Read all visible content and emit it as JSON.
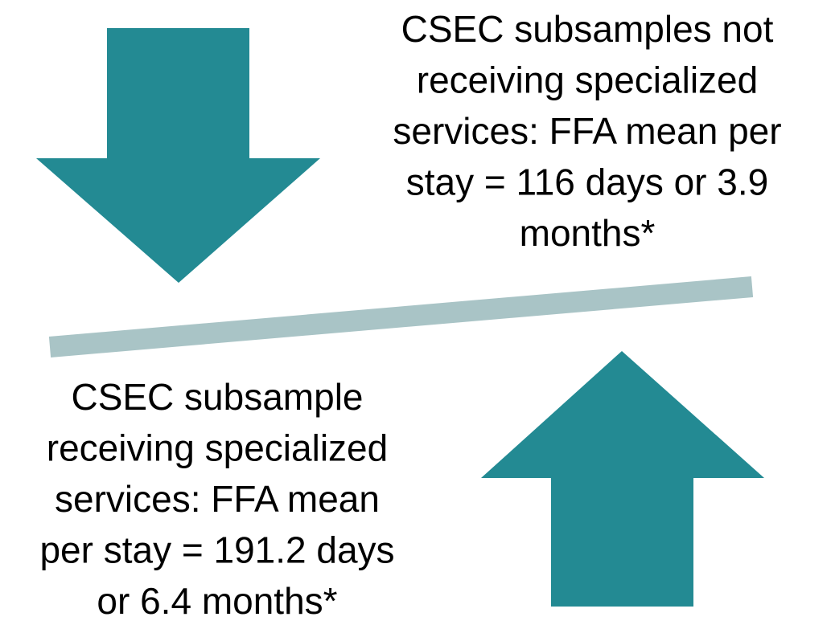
{
  "top_text": {
    "lines": [
      "CSEC subsamples not",
      "receiving specialized",
      "services: FFA mean per",
      "stay = 116 days or 3.9",
      "months*"
    ]
  },
  "bottom_text": {
    "lines": [
      "CSEC subsample",
      "receiving specialized",
      "services: FFA mean",
      "per stay = 191.2 days",
      "or 6.4 months*"
    ]
  }
}
